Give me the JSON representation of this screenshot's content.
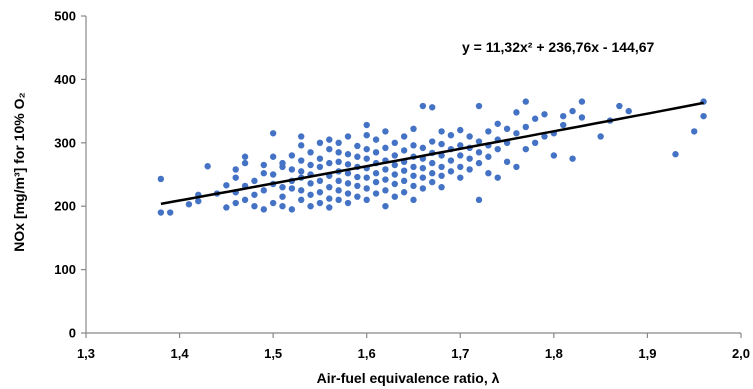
{
  "chart_data": {
    "type": "scatter",
    "xlabel": "Air-fuel equivalence ratio, λ",
    "ylabel": "NOx [mg/m³] for 10% O₂",
    "xlim": [
      1.3,
      2.0
    ],
    "ylim": [
      0,
      500
    ],
    "xticks": [
      "1,3",
      "1,4",
      "1,5",
      "1,6",
      "1,7",
      "1,8",
      "1,9",
      "2,0"
    ],
    "yticks": [
      "0",
      "100",
      "200",
      "300",
      "400",
      "500"
    ],
    "grid": false,
    "point_color": "#4472c4",
    "trendline": {
      "equation": "y = 11,32x² + 236,76x - 144,67",
      "coefficients": {
        "a": 11.32,
        "b": 236.76,
        "c": -144.67
      },
      "x_range": [
        1.38,
        1.96
      ],
      "color": "#000000"
    },
    "points": [
      [
        1.38,
        243
      ],
      [
        1.38,
        190
      ],
      [
        1.39,
        190
      ],
      [
        1.41,
        203
      ],
      [
        1.42,
        208
      ],
      [
        1.42,
        218
      ],
      [
        1.43,
        263
      ],
      [
        1.44,
        220
      ],
      [
        1.45,
        198
      ],
      [
        1.45,
        233
      ],
      [
        1.46,
        205
      ],
      [
        1.46,
        222
      ],
      [
        1.46,
        245
      ],
      [
        1.46,
        258
      ],
      [
        1.47,
        210
      ],
      [
        1.47,
        232
      ],
      [
        1.47,
        268
      ],
      [
        1.47,
        278
      ],
      [
        1.48,
        200
      ],
      [
        1.48,
        240
      ],
      [
        1.48,
        218
      ],
      [
        1.49,
        195
      ],
      [
        1.49,
        225
      ],
      [
        1.49,
        252
      ],
      [
        1.49,
        265
      ],
      [
        1.5,
        205
      ],
      [
        1.5,
        235
      ],
      [
        1.5,
        250
      ],
      [
        1.5,
        278
      ],
      [
        1.5,
        315
      ],
      [
        1.51,
        200
      ],
      [
        1.51,
        215
      ],
      [
        1.51,
        230
      ],
      [
        1.51,
        262
      ],
      [
        1.51,
        268
      ],
      [
        1.52,
        195
      ],
      [
        1.52,
        228
      ],
      [
        1.52,
        240
      ],
      [
        1.52,
        258
      ],
      [
        1.52,
        280
      ],
      [
        1.53,
        210
      ],
      [
        1.53,
        225
      ],
      [
        1.53,
        245
      ],
      [
        1.53,
        255
      ],
      [
        1.53,
        272
      ],
      [
        1.53,
        296
      ],
      [
        1.53,
        310
      ],
      [
        1.54,
        200
      ],
      [
        1.54,
        218
      ],
      [
        1.54,
        236
      ],
      [
        1.54,
        250
      ],
      [
        1.54,
        265
      ],
      [
        1.54,
        285
      ],
      [
        1.55,
        205
      ],
      [
        1.55,
        222
      ],
      [
        1.55,
        240
      ],
      [
        1.55,
        262
      ],
      [
        1.55,
        275
      ],
      [
        1.55,
        300
      ],
      [
        1.56,
        198
      ],
      [
        1.56,
        212
      ],
      [
        1.56,
        230
      ],
      [
        1.56,
        248
      ],
      [
        1.56,
        268
      ],
      [
        1.56,
        290
      ],
      [
        1.56,
        305
      ],
      [
        1.57,
        210
      ],
      [
        1.57,
        225
      ],
      [
        1.57,
        240
      ],
      [
        1.57,
        255
      ],
      [
        1.57,
        270
      ],
      [
        1.57,
        285
      ],
      [
        1.57,
        300
      ],
      [
        1.58,
        205
      ],
      [
        1.58,
        220
      ],
      [
        1.58,
        236
      ],
      [
        1.58,
        252
      ],
      [
        1.58,
        266
      ],
      [
        1.58,
        282
      ],
      [
        1.58,
        310
      ],
      [
        1.59,
        215
      ],
      [
        1.59,
        232
      ],
      [
        1.59,
        246
      ],
      [
        1.59,
        262
      ],
      [
        1.59,
        278
      ],
      [
        1.59,
        295
      ],
      [
        1.6,
        210
      ],
      [
        1.6,
        228
      ],
      [
        1.6,
        245
      ],
      [
        1.6,
        260
      ],
      [
        1.6,
        275
      ],
      [
        1.6,
        290
      ],
      [
        1.6,
        312
      ],
      [
        1.6,
        328
      ],
      [
        1.61,
        220
      ],
      [
        1.61,
        238
      ],
      [
        1.61,
        252
      ],
      [
        1.61,
        268
      ],
      [
        1.61,
        285
      ],
      [
        1.61,
        305
      ],
      [
        1.62,
        200
      ],
      [
        1.62,
        225
      ],
      [
        1.62,
        242
      ],
      [
        1.62,
        258
      ],
      [
        1.62,
        272
      ],
      [
        1.62,
        292
      ],
      [
        1.62,
        318
      ],
      [
        1.63,
        215
      ],
      [
        1.63,
        235
      ],
      [
        1.63,
        250
      ],
      [
        1.63,
        265
      ],
      [
        1.63,
        280
      ],
      [
        1.63,
        300
      ],
      [
        1.64,
        222
      ],
      [
        1.64,
        240
      ],
      [
        1.64,
        256
      ],
      [
        1.64,
        270
      ],
      [
        1.64,
        288
      ],
      [
        1.64,
        310
      ],
      [
        1.65,
        210
      ],
      [
        1.65,
        232
      ],
      [
        1.65,
        248
      ],
      [
        1.65,
        262
      ],
      [
        1.65,
        278
      ],
      [
        1.65,
        296
      ],
      [
        1.65,
        322
      ],
      [
        1.66,
        228
      ],
      [
        1.66,
        245
      ],
      [
        1.66,
        260
      ],
      [
        1.66,
        275
      ],
      [
        1.66,
        292
      ],
      [
        1.66,
        358
      ],
      [
        1.67,
        238
      ],
      [
        1.67,
        252
      ],
      [
        1.67,
        268
      ],
      [
        1.67,
        284
      ],
      [
        1.67,
        302
      ],
      [
        1.67,
        356
      ],
      [
        1.68,
        230
      ],
      [
        1.68,
        248
      ],
      [
        1.68,
        262
      ],
      [
        1.68,
        280
      ],
      [
        1.68,
        298
      ],
      [
        1.68,
        318
      ],
      [
        1.69,
        255
      ],
      [
        1.69,
        272
      ],
      [
        1.69,
        290
      ],
      [
        1.69,
        312
      ],
      [
        1.7,
        245
      ],
      [
        1.7,
        262
      ],
      [
        1.7,
        280
      ],
      [
        1.7,
        296
      ],
      [
        1.7,
        320
      ],
      [
        1.71,
        258
      ],
      [
        1.71,
        275
      ],
      [
        1.71,
        292
      ],
      [
        1.71,
        310
      ],
      [
        1.72,
        210
      ],
      [
        1.72,
        268
      ],
      [
        1.72,
        285
      ],
      [
        1.72,
        302
      ],
      [
        1.72,
        358
      ],
      [
        1.73,
        252
      ],
      [
        1.73,
        278
      ],
      [
        1.73,
        296
      ],
      [
        1.73,
        318
      ],
      [
        1.74,
        245
      ],
      [
        1.74,
        290
      ],
      [
        1.74,
        305
      ],
      [
        1.74,
        330
      ],
      [
        1.75,
        270
      ],
      [
        1.75,
        300
      ],
      [
        1.75,
        322
      ],
      [
        1.76,
        262
      ],
      [
        1.76,
        315
      ],
      [
        1.76,
        348
      ],
      [
        1.77,
        290
      ],
      [
        1.77,
        325
      ],
      [
        1.77,
        365
      ],
      [
        1.78,
        300
      ],
      [
        1.78,
        338
      ],
      [
        1.79,
        310
      ],
      [
        1.79,
        345
      ],
      [
        1.8,
        280
      ],
      [
        1.8,
        315
      ],
      [
        1.81,
        328
      ],
      [
        1.81,
        342
      ],
      [
        1.82,
        275
      ],
      [
        1.82,
        350
      ],
      [
        1.83,
        340
      ],
      [
        1.83,
        365
      ],
      [
        1.85,
        310
      ],
      [
        1.86,
        335
      ],
      [
        1.87,
        358
      ],
      [
        1.88,
        350
      ],
      [
        1.93,
        282
      ],
      [
        1.95,
        318
      ],
      [
        1.96,
        342
      ],
      [
        1.96,
        365
      ]
    ]
  }
}
